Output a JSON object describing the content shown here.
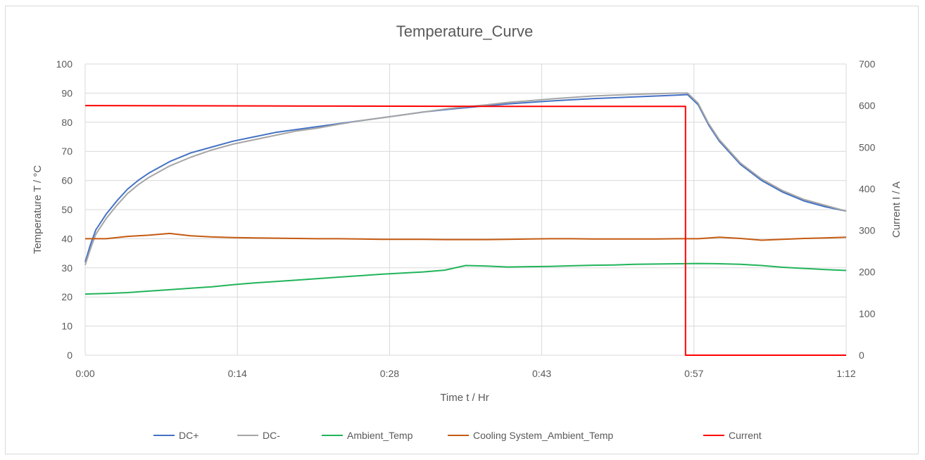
{
  "chart_data": {
    "type": "line",
    "title": "Temperature_Curve",
    "xlabel": "Time t / Hr",
    "ylabel_left": "Temperature T / °C",
    "ylabel_right": "Current I / A",
    "x_tick_labels": [
      "0:00",
      "0:14",
      "0:28",
      "0:43",
      "0:57",
      "1:12"
    ],
    "x_tick_values_min": [
      0,
      14.4,
      28.8,
      43.2,
      57.6,
      72
    ],
    "xlim_min": [
      0,
      72
    ],
    "ylim_left": [
      0,
      100
    ],
    "ylim_right": [
      0,
      700
    ],
    "yticks_left": [
      "0",
      "10",
      "20",
      "30",
      "40",
      "50",
      "60",
      "70",
      "80",
      "90",
      "100"
    ],
    "yticks_right": [
      "0",
      "100",
      "200",
      "300",
      "400",
      "500",
      "600",
      "700"
    ],
    "grid": true,
    "legend_position": "bottom",
    "series": [
      {
        "name": "DC+",
        "axis": "left",
        "color": "#4472c4",
        "x": [
          0,
          0.5,
          1,
          2,
          3,
          4,
          5,
          6,
          8,
          10,
          12,
          14,
          16,
          18,
          20,
          22,
          24,
          26,
          28,
          30,
          32,
          34,
          36,
          38,
          40,
          42,
          44,
          46,
          48,
          50,
          52,
          54,
          56,
          57,
          58,
          59,
          60,
          62,
          64,
          66,
          68,
          70,
          72
        ],
        "values": [
          32,
          38,
          43,
          48.5,
          53,
          57,
          60,
          62.5,
          66.5,
          69.5,
          71.5,
          73.5,
          75,
          76.5,
          77.5,
          78.5,
          79.5,
          80.5,
          81.5,
          82.5,
          83.5,
          84.3,
          85,
          85.7,
          86.3,
          86.8,
          87.3,
          87.7,
          88.1,
          88.4,
          88.7,
          89,
          89.3,
          89.5,
          86,
          79,
          73.5,
          65.5,
          60,
          56,
          53,
          51,
          49.5
        ]
      },
      {
        "name": "DC-",
        "axis": "left",
        "color": "#a5a5a5",
        "x": [
          0,
          0.5,
          1,
          2,
          3,
          4,
          5,
          6,
          8,
          10,
          12,
          14,
          16,
          18,
          20,
          22,
          24,
          26,
          28,
          30,
          32,
          34,
          36,
          38,
          40,
          42,
          44,
          46,
          48,
          50,
          52,
          54,
          56,
          57,
          58,
          59,
          60,
          62,
          64,
          66,
          68,
          70,
          72
        ],
        "values": [
          31,
          36.5,
          41.5,
          47,
          51.5,
          55.5,
          58.5,
          61,
          65,
          68,
          70.5,
          72.5,
          74,
          75.5,
          77,
          78,
          79.3,
          80.5,
          81.5,
          82.5,
          83.5,
          84.5,
          85.3,
          86,
          86.8,
          87.4,
          88,
          88.5,
          89,
          89.3,
          89.6,
          89.8,
          90,
          90,
          86.5,
          79.5,
          74,
          66,
          60.5,
          56.5,
          53.5,
          51.5,
          49.5
        ]
      },
      {
        "name": "Ambient_Temp",
        "axis": "left",
        "color": "#21b45a",
        "x": [
          0,
          2,
          4,
          6,
          8,
          10,
          12,
          14,
          16,
          18,
          20,
          22,
          24,
          26,
          28,
          30,
          32,
          34,
          36,
          38,
          40,
          42,
          44,
          46,
          48,
          50,
          52,
          54,
          56,
          58,
          60,
          62,
          64,
          66,
          68,
          70,
          72
        ],
        "values": [
          21,
          21.2,
          21.5,
          22,
          22.5,
          23,
          23.5,
          24.2,
          24.8,
          25.3,
          25.8,
          26.3,
          26.8,
          27.3,
          27.8,
          28.2,
          28.6,
          29.2,
          30.8,
          30.6,
          30.3,
          30.4,
          30.5,
          30.7,
          30.9,
          31,
          31.2,
          31.3,
          31.4,
          31.5,
          31.4,
          31.2,
          30.8,
          30.2,
          29.8,
          29.4,
          29.1
        ]
      },
      {
        "name": "Cooling System_Ambient_Temp",
        "axis": "left",
        "color": "#c55a11",
        "x": [
          0,
          2,
          4,
          6,
          8,
          10,
          12,
          14,
          16,
          18,
          20,
          22,
          24,
          26,
          28,
          30,
          32,
          34,
          36,
          38,
          40,
          42,
          44,
          46,
          48,
          50,
          52,
          54,
          56,
          58,
          60,
          62,
          64,
          66,
          68,
          70,
          72
        ],
        "values": [
          40,
          40,
          40.8,
          41.2,
          41.8,
          41,
          40.6,
          40.4,
          40.3,
          40.2,
          40.1,
          40,
          40,
          39.9,
          39.8,
          39.8,
          39.8,
          39.7,
          39.7,
          39.7,
          39.8,
          39.9,
          40,
          40,
          39.9,
          39.9,
          39.9,
          39.9,
          40,
          40,
          40.5,
          40.1,
          39.5,
          39.8,
          40.1,
          40.3,
          40.5
        ]
      },
      {
        "name": "Current",
        "axis": "right",
        "color": "#ff0000",
        "x": [
          0,
          20,
          40,
          56.8,
          56.8,
          57.2,
          72
        ],
        "values": [
          600,
          599,
          598,
          598,
          0,
          0,
          0
        ]
      }
    ]
  }
}
